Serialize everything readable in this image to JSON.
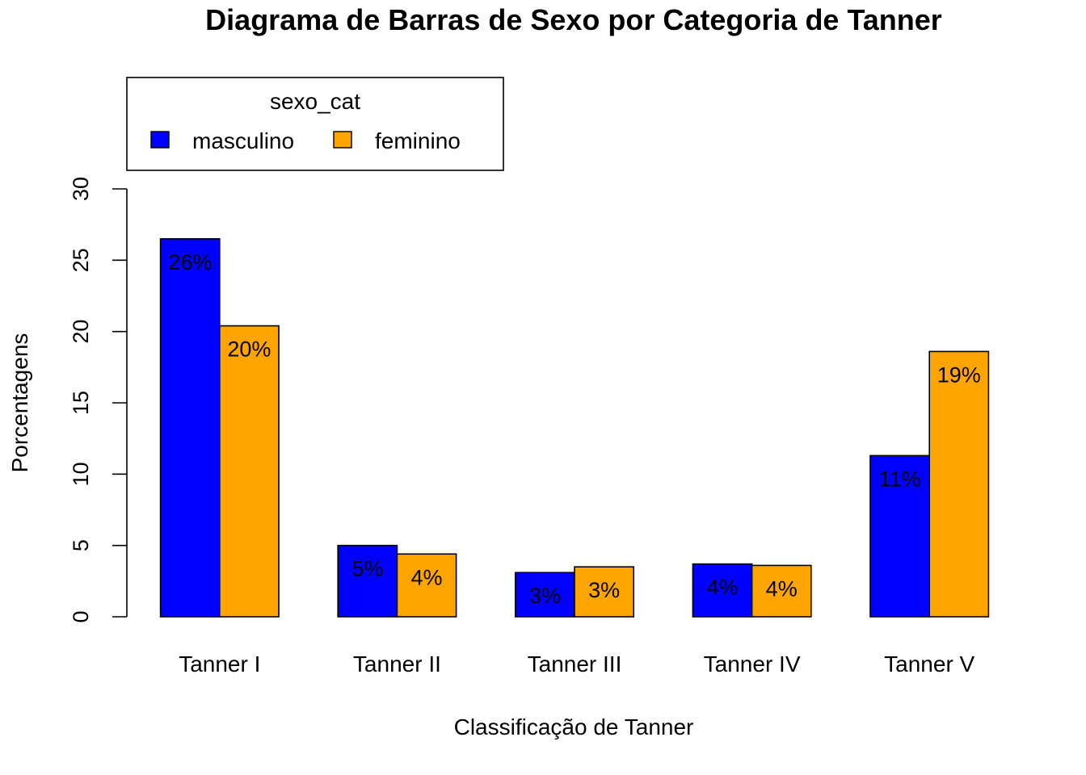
{
  "chart_data": {
    "type": "bar",
    "title": "Diagrama de Barras de Sexo por Categoria de Tanner",
    "xlabel": "Classificação de Tanner",
    "ylabel": "Porcentagens",
    "ylim": [
      0,
      30
    ],
    "yticks": [
      0,
      5,
      10,
      15,
      20,
      25,
      30
    ],
    "categories": [
      "Tanner I",
      "Tanner II",
      "Tanner III",
      "Tanner IV",
      "Tanner V"
    ],
    "series": [
      {
        "name": "masculino",
        "color": "#0000ff",
        "values": [
          26.5,
          5.0,
          3.1,
          3.7,
          11.3
        ],
        "labels": [
          "26%",
          "5%",
          "3%",
          "4%",
          "11%"
        ]
      },
      {
        "name": "feminino",
        "color": "#ffa500",
        "values": [
          20.4,
          4.4,
          3.5,
          3.6,
          18.6
        ],
        "labels": [
          "20%",
          "4%",
          "3%",
          "4%",
          "19%"
        ]
      }
    ],
    "legend": {
      "title": "sexo_cat",
      "placement": "top-left"
    },
    "grid": false
  }
}
